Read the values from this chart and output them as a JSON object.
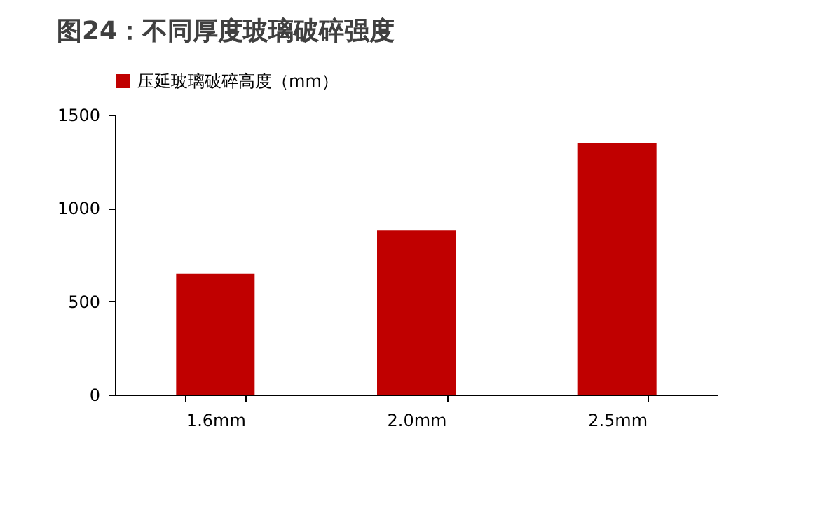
{
  "chart_data": {
    "type": "bar",
    "title": "图24：不同厚度玻璃破碎强度",
    "categories": [
      "1.6mm",
      "2.0mm",
      "2.5mm"
    ],
    "series": [
      {
        "name": "压延玻璃破碎高度（mm）",
        "color": "#c00000",
        "values": [
          650,
          880,
          1350
        ]
      }
    ],
    "ylim": [
      0,
      1500
    ],
    "yticks": [
      0,
      500,
      1000,
      1500
    ],
    "grid": false,
    "legend": "top"
  }
}
